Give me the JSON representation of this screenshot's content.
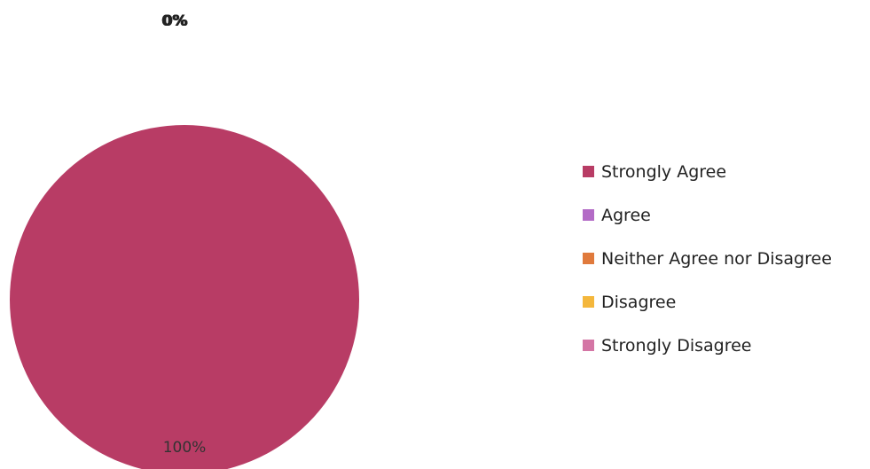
{
  "chart_data": {
    "type": "pie",
    "title": "",
    "categories": [
      "Strongly Agree",
      "Agree",
      "Neither Agree nor Disagree",
      "Disagree",
      "Strongly Disagree"
    ],
    "values": [
      100,
      0,
      0,
      0,
      0
    ],
    "value_labels": [
      "100%",
      "0%",
      "0%",
      "0%",
      "0%"
    ],
    "colors": [
      "#b83c65",
      "#b36bc6",
      "#e07a3c",
      "#f4b73c",
      "#d476a5"
    ],
    "legend": {
      "position": "right"
    }
  }
}
